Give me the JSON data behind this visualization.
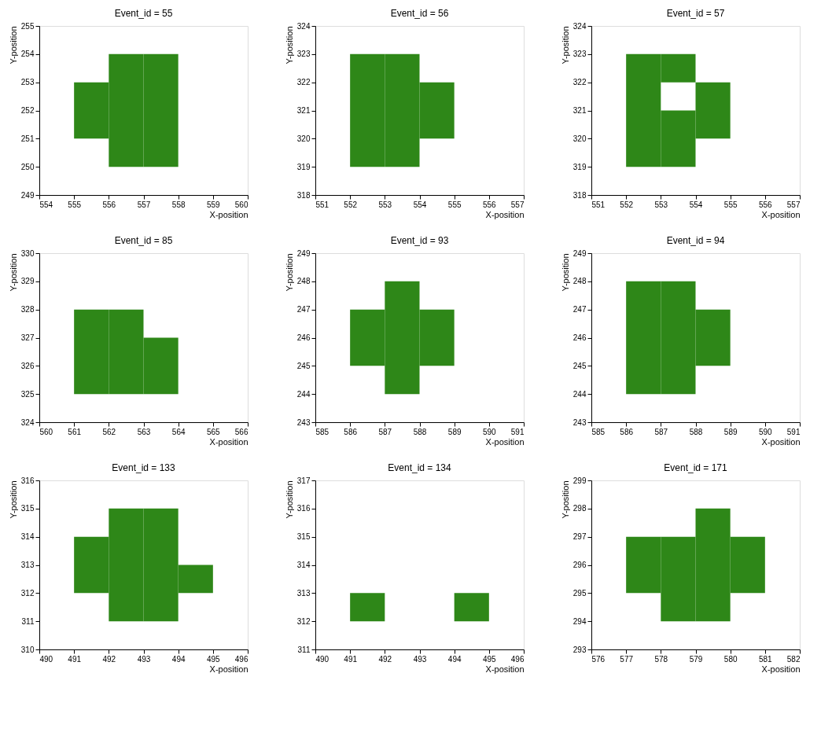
{
  "chart_data": [
    {
      "type": "bar",
      "title": "Event_id = 55",
      "xlabel": "X-position",
      "ylabel": "Y-position",
      "xlim": [
        554,
        560
      ],
      "xticks": [
        554,
        555,
        556,
        557,
        558,
        559,
        560
      ],
      "ylim": [
        249,
        255
      ],
      "yticks": [
        249,
        250,
        251,
        252,
        253,
        254,
        255
      ],
      "grid": false,
      "series": [
        {
          "color": "#2e8718",
          "x": [
            555.5,
            556.5,
            557.5
          ],
          "base": [
            251,
            250,
            250
          ],
          "values": [
            2,
            4,
            4
          ]
        }
      ]
    },
    {
      "type": "bar",
      "title": "Event_id = 56",
      "xlabel": "X-position",
      "ylabel": "Y-position",
      "xlim": [
        551,
        557
      ],
      "xticks": [
        551,
        552,
        553,
        554,
        555,
        556,
        557
      ],
      "ylim": [
        318,
        324
      ],
      "yticks": [
        318,
        319,
        320,
        321,
        322,
        323,
        324
      ],
      "grid": false,
      "series": [
        {
          "color": "#2e8718",
          "x": [
            552.5,
            553.5,
            554.5
          ],
          "base": [
            319,
            319,
            320
          ],
          "values": [
            4,
            4,
            2
          ]
        }
      ]
    },
    {
      "type": "bar",
      "title": "Event_id = 57",
      "xlabel": "X-position",
      "ylabel": "Y-position",
      "xlim": [
        551,
        557
      ],
      "xticks": [
        551,
        552,
        553,
        554,
        555,
        556,
        557
      ],
      "ylim": [
        318,
        324
      ],
      "yticks": [
        318,
        319,
        320,
        321,
        322,
        323,
        324
      ],
      "grid": false,
      "series": [
        {
          "color": "#2e8718",
          "x": [
            552.5,
            553.5,
            554.5
          ],
          "base": [
            319,
            319,
            320
          ],
          "values": [
            4,
            2,
            2
          ]
        },
        {
          "color": "#2e8718",
          "x": [
            553.5
          ],
          "base": [
            322
          ],
          "values": [
            1
          ]
        }
      ]
    },
    {
      "type": "bar",
      "title": "Event_id = 85",
      "xlabel": "X-position",
      "ylabel": "Y-position",
      "xlim": [
        560,
        566
      ],
      "xticks": [
        560,
        561,
        562,
        563,
        564,
        565,
        566
      ],
      "ylim": [
        324,
        330
      ],
      "yticks": [
        324,
        325,
        326,
        327,
        328,
        329,
        330
      ],
      "grid": false,
      "series": [
        {
          "color": "#2e8718",
          "x": [
            561.5,
            562.5,
            563.5
          ],
          "base": [
            325,
            325,
            325
          ],
          "values": [
            3,
            3,
            2
          ]
        }
      ]
    },
    {
      "type": "bar",
      "title": "Event_id = 93",
      "xlabel": "X-position",
      "ylabel": "Y-position",
      "xlim": [
        585,
        591
      ],
      "xticks": [
        585,
        586,
        587,
        588,
        589,
        590,
        591
      ],
      "ylim": [
        243,
        249
      ],
      "yticks": [
        243,
        244,
        245,
        246,
        247,
        248,
        249
      ],
      "grid": false,
      "series": [
        {
          "color": "#2e8718",
          "x": [
            586.5,
            587.5,
            588.5
          ],
          "base": [
            245,
            244,
            245
          ],
          "values": [
            2,
            4,
            2
          ]
        }
      ]
    },
    {
      "type": "bar",
      "title": "Event_id = 94",
      "xlabel": "X-position",
      "ylabel": "Y-position",
      "xlim": [
        585,
        591
      ],
      "xticks": [
        585,
        586,
        587,
        588,
        589,
        590,
        591
      ],
      "ylim": [
        243,
        249
      ],
      "yticks": [
        243,
        244,
        245,
        246,
        247,
        248,
        249
      ],
      "grid": false,
      "series": [
        {
          "color": "#2e8718",
          "x": [
            586.5,
            587.5,
            588.5
          ],
          "base": [
            244,
            244,
            245
          ],
          "values": [
            4,
            4,
            2
          ]
        }
      ]
    },
    {
      "type": "bar",
      "title": "Event_id = 133",
      "xlabel": "X-position",
      "ylabel": "Y-position",
      "xlim": [
        490,
        496
      ],
      "xticks": [
        490,
        491,
        492,
        493,
        494,
        495,
        496
      ],
      "ylim": [
        310,
        316
      ],
      "yticks": [
        310,
        311,
        312,
        313,
        314,
        315,
        316
      ],
      "grid": false,
      "series": [
        {
          "color": "#2e8718",
          "x": [
            491.5,
            492.5,
            493.5,
            494.5
          ],
          "base": [
            312,
            311,
            311,
            312
          ],
          "values": [
            2,
            4,
            4,
            1
          ]
        }
      ]
    },
    {
      "type": "bar",
      "title": "Event_id = 134",
      "xlabel": "X-position",
      "ylabel": "Y-position",
      "xlim": [
        490,
        496
      ],
      "xticks": [
        490,
        491,
        492,
        493,
        494,
        495,
        496
      ],
      "ylim": [
        311,
        317
      ],
      "yticks": [
        311,
        312,
        313,
        314,
        315,
        316,
        317
      ],
      "grid": false,
      "series": [
        {
          "color": "#2e8718",
          "x": [
            491.5,
            494.5
          ],
          "base": [
            312,
            312
          ],
          "values": [
            1,
            1
          ]
        }
      ]
    },
    {
      "type": "bar",
      "title": "Event_id = 171",
      "xlabel": "X-position",
      "ylabel": "Y-position",
      "xlim": [
        576,
        582
      ],
      "xticks": [
        576,
        577,
        578,
        579,
        580,
        581,
        582
      ],
      "ylim": [
        293,
        299
      ],
      "yticks": [
        293,
        294,
        295,
        296,
        297,
        298,
        299
      ],
      "grid": false,
      "series": [
        {
          "color": "#2e8718",
          "x": [
            577.5,
            578.5,
            579.5,
            580.5
          ],
          "base": [
            295,
            294,
            294,
            295
          ],
          "values": [
            2,
            3,
            4,
            2
          ]
        }
      ]
    }
  ]
}
